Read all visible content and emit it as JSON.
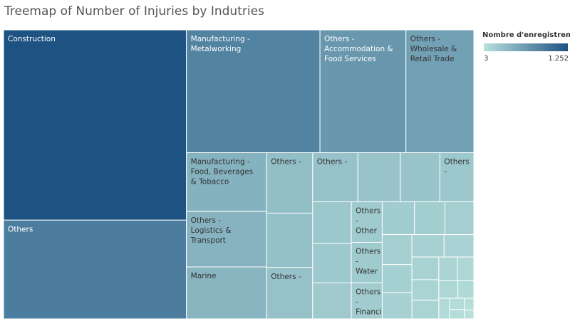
{
  "chart_data": {
    "type": "treemap",
    "title": "Treemap of Number of Injuries by Indutries",
    "legend": {
      "title": "Nombre d'enregistrem..",
      "min_label": "3",
      "max_label": "1.252",
      "min": 3,
      "max": 1252,
      "color_low": "#b8e1dc",
      "color_high": "#1e5283",
      "placement": "top-right"
    },
    "items": [
      {
        "label": "Construction",
        "value": 1252
      },
      {
        "label": "Others",
        "value": 650
      },
      {
        "label": "Manufacturing - Metalworking",
        "value": 590
      },
      {
        "label": "Others - Accommodation & Food Services",
        "value": 380
      },
      {
        "label": "Others - Wholesale & Retail Trade",
        "value": 300
      },
      {
        "label": "Manufacturing - Food, Beverages & Tobacco",
        "value": 170
      },
      {
        "label": "Others - Logistics & Transport",
        "value": 160
      },
      {
        "label": "Marine",
        "value": 150
      },
      {
        "label": "Others -",
        "value": 100
      },
      {
        "label": "",
        "value": 90
      },
      {
        "label": "Others -",
        "value": 85
      },
      {
        "label": "Others -",
        "value": 80
      },
      {
        "label": "",
        "value": 75
      },
      {
        "label": "",
        "value": 70
      },
      {
        "label": "Others -",
        "value": 60
      },
      {
        "label": "",
        "value": 58
      },
      {
        "label": "",
        "value": 55
      },
      {
        "label": "",
        "value": 50
      },
      {
        "label": "Others - Other",
        "value": 45
      },
      {
        "label": "Others - Water",
        "value": 45
      },
      {
        "label": "Others - Financial &",
        "value": 40
      },
      {
        "label": "",
        "value": 38
      },
      {
        "label": "",
        "value": 36
      },
      {
        "label": "",
        "value": 34
      },
      {
        "label": "",
        "value": 32
      },
      {
        "label": "",
        "value": 30
      },
      {
        "label": "",
        "value": 28
      },
      {
        "label": "",
        "value": 26
      },
      {
        "label": "",
        "value": 24
      },
      {
        "label": "",
        "value": 22
      },
      {
        "label": "",
        "value": 20
      },
      {
        "label": "",
        "value": 18
      },
      {
        "label": "",
        "value": 16
      },
      {
        "label": "",
        "value": 14
      },
      {
        "label": "",
        "value": 12
      },
      {
        "label": "",
        "value": 10
      },
      {
        "label": "",
        "value": 8
      },
      {
        "label": "",
        "value": 6
      },
      {
        "label": "",
        "value": 5
      },
      {
        "label": "",
        "value": 4
      },
      {
        "label": "",
        "value": 3
      }
    ]
  }
}
